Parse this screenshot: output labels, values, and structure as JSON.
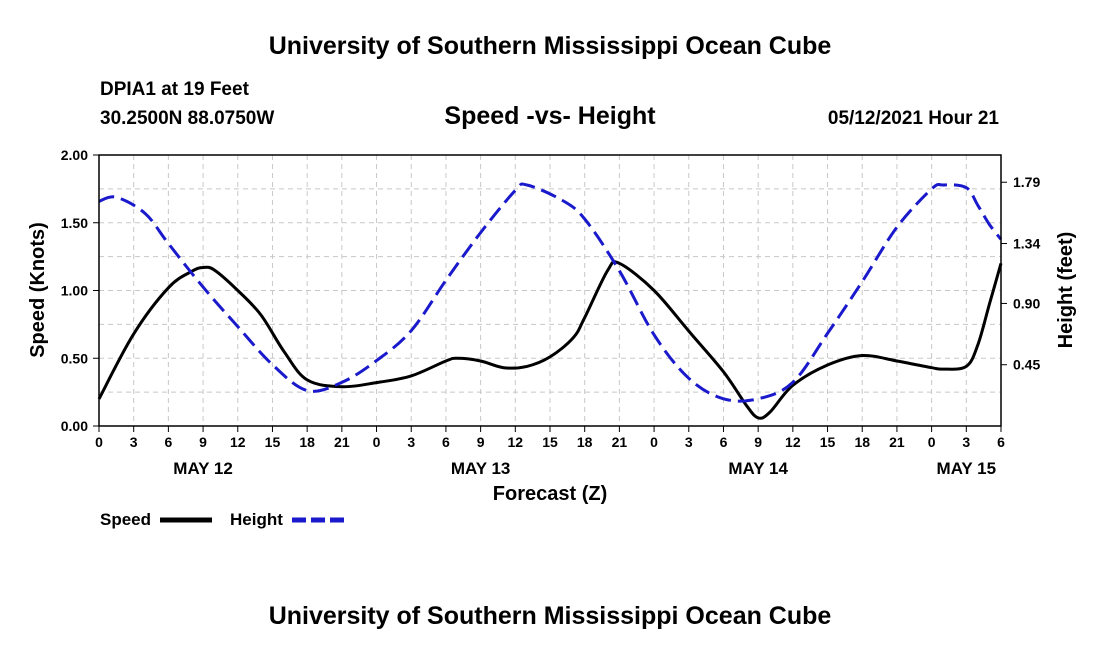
{
  "page_title": "University of Southern Mississippi Ocean Cube",
  "footer_title": "University of Southern Mississippi Ocean Cube",
  "station": "DPIA1 at 19 Feet",
  "coordinates": "30.2500N  88.0750W",
  "chart_title": "Speed -vs- Height",
  "timestamp": "05/12/2021 Hour 21",
  "colors": {
    "speed": "#000000",
    "height": "#1a1acc",
    "grid": "#c8c8c8"
  },
  "chart_data": {
    "type": "line",
    "xlabel": "Forecast (Z)",
    "ylabel_left": "Speed (Knots)",
    "ylabel_right": "Height (feet)",
    "x_hours": [
      0,
      78
    ],
    "x_ticks": [
      {
        "h": 0,
        "label": "0"
      },
      {
        "h": 3,
        "label": "3"
      },
      {
        "h": 6,
        "label": "6"
      },
      {
        "h": 9,
        "label": "9"
      },
      {
        "h": 12,
        "label": "12"
      },
      {
        "h": 15,
        "label": "15"
      },
      {
        "h": 18,
        "label": "18"
      },
      {
        "h": 21,
        "label": "21"
      },
      {
        "h": 24,
        "label": "0"
      },
      {
        "h": 27,
        "label": "3"
      },
      {
        "h": 30,
        "label": "6"
      },
      {
        "h": 33,
        "label": "9"
      },
      {
        "h": 36,
        "label": "12"
      },
      {
        "h": 39,
        "label": "15"
      },
      {
        "h": 42,
        "label": "18"
      },
      {
        "h": 45,
        "label": "21"
      },
      {
        "h": 48,
        "label": "0"
      },
      {
        "h": 51,
        "label": "3"
      },
      {
        "h": 54,
        "label": "6"
      },
      {
        "h": 57,
        "label": "9"
      },
      {
        "h": 60,
        "label": "12"
      },
      {
        "h": 63,
        "label": "15"
      },
      {
        "h": 66,
        "label": "18"
      },
      {
        "h": 69,
        "label": "21"
      },
      {
        "h": 72,
        "label": "0"
      },
      {
        "h": 75,
        "label": "3"
      },
      {
        "h": 78,
        "label": "6"
      }
    ],
    "date_labels": [
      {
        "h": 9,
        "label": "MAY 12"
      },
      {
        "h": 33,
        "label": "MAY 13"
      },
      {
        "h": 57,
        "label": "MAY 14"
      },
      {
        "h": 75,
        "label": "MAY 15"
      }
    ],
    "ylim_left": [
      0,
      2.0
    ],
    "yticks_left": [
      "0.00",
      "0.50",
      "1.00",
      "1.50",
      "2.00"
    ],
    "ylim_right": [
      0,
      1.99
    ],
    "yticks_right": [
      "0.45",
      "0.90",
      "1.34",
      "1.79"
    ],
    "series": [
      {
        "name": "Speed",
        "axis": "left",
        "style": "solid",
        "x": [
          0,
          3,
          6,
          8,
          9,
          10,
          12,
          14,
          16,
          18,
          21,
          24,
          27,
          30,
          31,
          33,
          35,
          37,
          39,
          41,
          42,
          44,
          45,
          48,
          51,
          54,
          56,
          57,
          58,
          60,
          63,
          66,
          69,
          72,
          73,
          75,
          76,
          77,
          78
        ],
        "y": [
          0.2,
          0.68,
          1.02,
          1.14,
          1.17,
          1.15,
          1.0,
          0.82,
          0.55,
          0.34,
          0.29,
          0.32,
          0.37,
          0.48,
          0.5,
          0.48,
          0.43,
          0.44,
          0.51,
          0.65,
          0.8,
          1.15,
          1.2,
          1.0,
          0.7,
          0.4,
          0.15,
          0.06,
          0.1,
          0.3,
          0.45,
          0.52,
          0.48,
          0.43,
          0.42,
          0.44,
          0.6,
          0.9,
          1.2
        ]
      },
      {
        "name": "Height",
        "axis": "right",
        "style": "dashed",
        "x": [
          0,
          1.5,
          4,
          6,
          9,
          12,
          15,
          18,
          21,
          24,
          27,
          30,
          33,
          36,
          37,
          40,
          42,
          45,
          48,
          51,
          54,
          57,
          60,
          63,
          66,
          69,
          72,
          73,
          75,
          76,
          77,
          78
        ],
        "y": [
          1.65,
          1.68,
          1.56,
          1.34,
          1.02,
          0.73,
          0.45,
          0.26,
          0.32,
          0.48,
          0.7,
          1.07,
          1.42,
          1.73,
          1.77,
          1.66,
          1.52,
          1.14,
          0.67,
          0.35,
          0.2,
          0.2,
          0.32,
          0.68,
          1.06,
          1.46,
          1.74,
          1.77,
          1.75,
          1.62,
          1.48,
          1.37
        ]
      }
    ],
    "legend": [
      {
        "label": "Speed",
        "style": "solid"
      },
      {
        "label": "Height",
        "style": "dashed"
      }
    ]
  }
}
